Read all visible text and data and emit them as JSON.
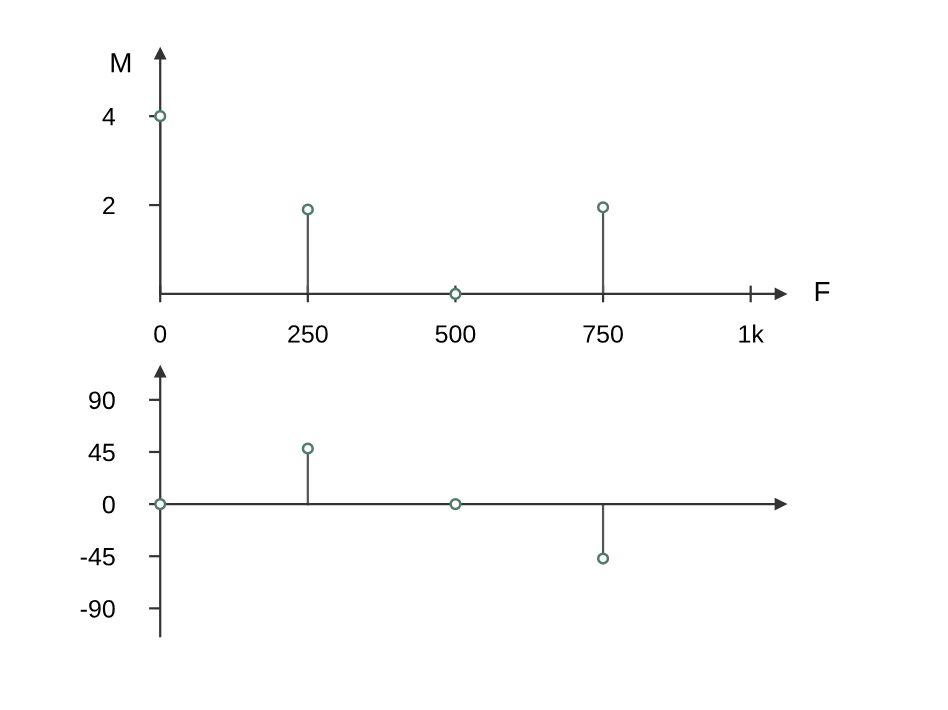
{
  "chart_data": [
    {
      "type": "lollipop",
      "xlabel": "F",
      "ylabel": "M",
      "x": [
        0,
        250,
        500,
        750
      ],
      "series": [
        {
          "color": "#4f7a6c",
          "values": [
            4,
            1.9,
            0,
            1.95
          ]
        }
      ],
      "xlim": [
        0,
        1050
      ],
      "ylim": [
        0,
        5.4
      ],
      "xticks": [
        0,
        250,
        500,
        750,
        {
          "value": 1000,
          "label": "1k"
        }
      ],
      "yticks": [
        2,
        4
      ],
      "marker": "circle",
      "grid": false,
      "legend": false
    },
    {
      "type": "lollipop",
      "x": [
        0,
        250,
        500,
        750
      ],
      "series": [
        {
          "color": "#4f7a6c",
          "values": [
            0,
            48,
            0,
            -47
          ]
        }
      ],
      "xlim": [
        0,
        1050
      ],
      "ylim": [
        -114,
        114
      ],
      "yticks": [
        90,
        45,
        0,
        -45,
        -90
      ],
      "tick_labels": "y",
      "marker": "circle",
      "legend": false
    }
  ]
}
